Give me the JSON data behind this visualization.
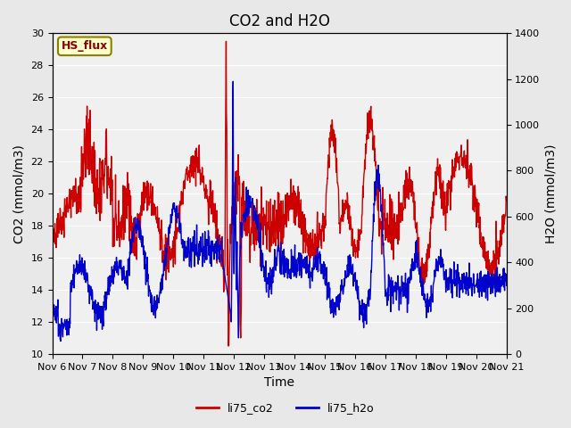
{
  "title": "CO2 and H2O",
  "xlabel": "Time",
  "ylabel_left": "CO2 (mmol/m3)",
  "ylabel_right": "H2O (mmol/m3)",
  "xtick_labels": [
    "Nov 6",
    "Nov 7",
    "Nov 8",
    "Nov 9",
    "Nov 10",
    "Nov 11",
    "Nov 12",
    "Nov 13",
    "Nov 14",
    "Nov 15",
    "Nov 16",
    "Nov 17",
    "Nov 18",
    "Nov 19",
    "Nov 20",
    "Nov 21"
  ],
  "ylim_left": [
    10,
    30
  ],
  "ylim_right": [
    0,
    1400
  ],
  "yticks_left": [
    10,
    12,
    14,
    16,
    18,
    20,
    22,
    24,
    26,
    28,
    30
  ],
  "yticks_right": [
    0,
    200,
    400,
    600,
    800,
    1000,
    1200,
    1400
  ],
  "co2_color": "#cc0000",
  "h2o_color": "#0000cc",
  "bg_color": "#e8e8e8",
  "plot_bg_color": "#f0f0f0",
  "annotation_text": "HS_flux",
  "annotation_bg": "#ffffcc",
  "annotation_border": "#8b8000",
  "legend_entries": [
    "li75_co2",
    "li75_h2o"
  ],
  "linewidth": 1.0,
  "title_fontsize": 12,
  "axis_fontsize": 10,
  "tick_fontsize": 8
}
